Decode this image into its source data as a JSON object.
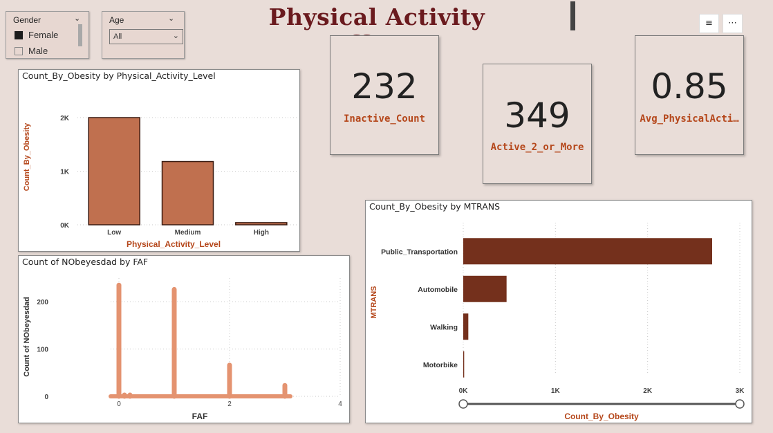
{
  "dashboard_title": "Physical Activity Effects",
  "slicers": {
    "gender": {
      "label": "Gender",
      "options": [
        {
          "label": "Female",
          "checked": true
        },
        {
          "label": "Male",
          "checked": false
        }
      ]
    },
    "age": {
      "label": "Age",
      "selected": "All"
    }
  },
  "toolbar": {
    "filter_icon": "filter-icon",
    "more_icon": "more-options-icon",
    "filter_glyph": "≡",
    "more_glyph": "⋯"
  },
  "cards": [
    {
      "value": "232",
      "label": "Inactive_Count"
    },
    {
      "value": "349",
      "label": "Active_2_or_More"
    },
    {
      "value": "0.85",
      "label": "Avg_PhysicalActi…"
    }
  ],
  "colors": {
    "accent": "#b5471b",
    "bar_activity": "#c0704f",
    "bar_mtrans": "#74301c",
    "fill_faf": "#e49370",
    "title": "#6a1a1e"
  },
  "chart_data": [
    {
      "id": "activity",
      "type": "bar",
      "title": "Count_By_Obesity by Physical_Activity_Level",
      "xlabel": "Physical_Activity_Level",
      "ylabel": "Count_By_Obesity",
      "categories": [
        "Low",
        "Medium",
        "High"
      ],
      "values": [
        2000,
        1180,
        40
      ],
      "ylim": [
        0,
        2000
      ],
      "yticks": [
        0,
        1000,
        2000
      ],
      "ytick_labels": [
        "0K",
        "1K",
        "2K"
      ],
      "grid": true
    },
    {
      "id": "faf",
      "type": "area",
      "title": "Count of NObeyesdad by FAF",
      "xlabel": "FAF",
      "ylabel": "Count of NObeyesdad",
      "x": [
        0,
        0.1,
        0.2,
        1,
        2,
        3
      ],
      "values": [
        235,
        3,
        3,
        226,
        66,
        23
      ],
      "xlim": [
        -0.15,
        4
      ],
      "ylim": [
        0,
        250
      ],
      "xticks": [
        0,
        2,
        4
      ],
      "yticks": [
        0,
        100,
        200
      ],
      "grid": true
    },
    {
      "id": "mtrans",
      "type": "bar",
      "orientation": "horizontal",
      "title": "Count_By_Obesity by MTRANS",
      "xlabel": "Count_By_Obesity",
      "ylabel": "MTRANS",
      "categories": [
        "Public_Transportation",
        "Automobile",
        "Walking",
        "Motorbike"
      ],
      "values": [
        2700,
        470,
        55,
        10
      ],
      "xlim": [
        0,
        3000
      ],
      "xticks": [
        0,
        1000,
        2000,
        3000
      ],
      "xtick_labels": [
        "0K",
        "1K",
        "2K",
        "3K"
      ],
      "grid": true
    }
  ]
}
